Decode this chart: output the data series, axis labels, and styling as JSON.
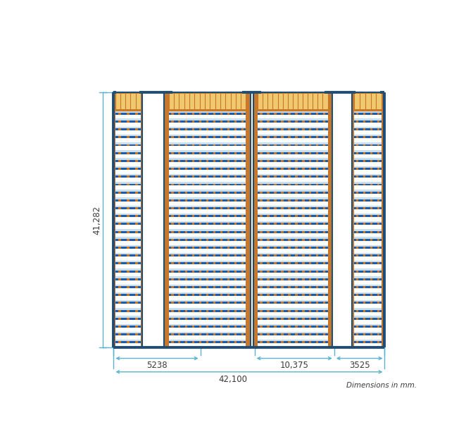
{
  "fig_width": 6.62,
  "fig_height": 6.06,
  "bg_color": "#ffffff",
  "wall_color": "#1e4d78",
  "wall_lw": 2.8,
  "dim_color": "#5ab4d0",
  "rack_border": "#1e4d78",
  "shelf_blue": "#1e5ca8",
  "shelf_light": "#c8dff0",
  "orange": "#c87828",
  "pallet_fill": "#f0c86e",
  "pallet_edge": "#c87828",
  "dim_text_color": "#3a3a3a",
  "dim_fontsize": 8.5,
  "note_fontsize": 7.5,
  "label_41282": "41,282",
  "label_5238": "5238",
  "label_10375": "10,375",
  "label_3525": "3525",
  "label_42100": "42,100",
  "note_text": "Dimensions in mm.",
  "num_rows": 30,
  "L": 100,
  "R": 600,
  "T": 530,
  "B": 60
}
